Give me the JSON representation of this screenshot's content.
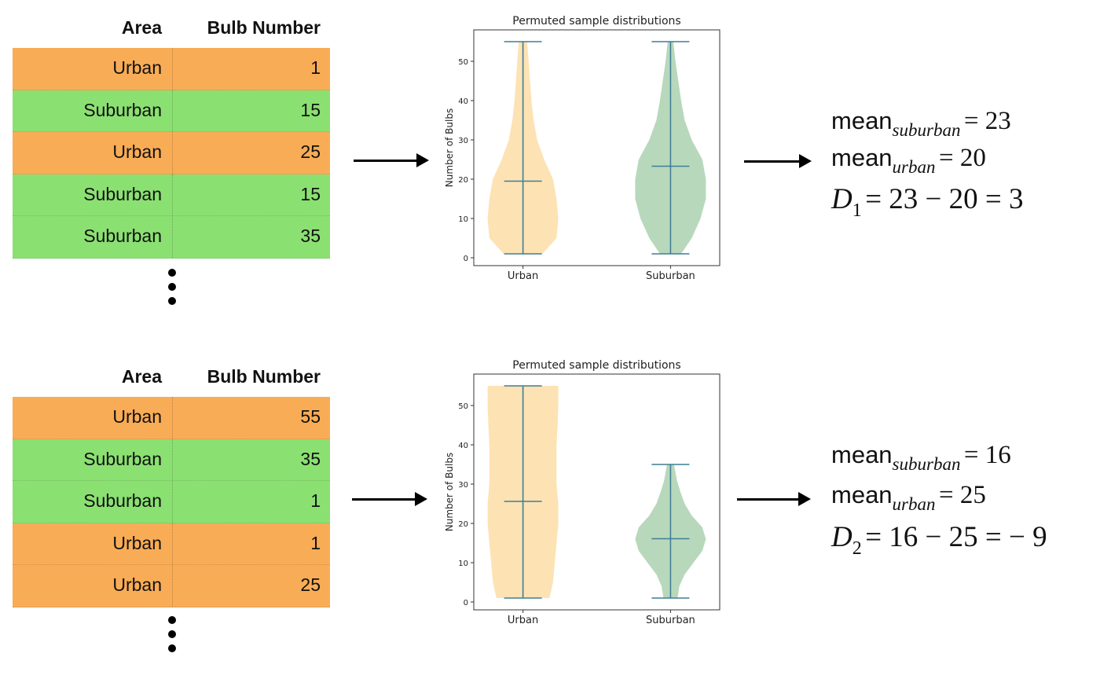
{
  "panels": [
    {
      "table": {
        "header": {
          "area": "Area",
          "bulb": "Bulb Number"
        },
        "rows": [
          {
            "area": "Urban",
            "bulb": "1"
          },
          {
            "area": "Suburban",
            "bulb": "15"
          },
          {
            "area": "Urban",
            "bulb": "25"
          },
          {
            "area": "Suburban",
            "bulb": "15"
          },
          {
            "area": "Suburban",
            "bulb": "35"
          }
        ]
      },
      "formulas": {
        "mean_word": "mean",
        "sub_suburban": "suburban",
        "sub_urban": "urban",
        "mean_suburban_rhs": "= 23",
        "mean_urban_rhs": "= 20",
        "d_symbol": "D",
        "d_index": "1",
        "d_rhs": "= 23 − 20 = 3"
      }
    },
    {
      "table": {
        "header": {
          "area": "Area",
          "bulb": "Bulb Number"
        },
        "rows": [
          {
            "area": "Urban",
            "bulb": "55"
          },
          {
            "area": "Suburban",
            "bulb": "35"
          },
          {
            "area": "Suburban",
            "bulb": "1"
          },
          {
            "area": "Urban",
            "bulb": "1"
          },
          {
            "area": "Urban",
            "bulb": "25"
          }
        ]
      },
      "formulas": {
        "mean_word": "mean",
        "sub_suburban": "suburban",
        "sub_urban": "urban",
        "mean_suburban_rhs": "= 16",
        "mean_urban_rhs": "= 25",
        "d_symbol": "D",
        "d_index": "2",
        "d_rhs": "= 16 − 25 = − 9"
      }
    }
  ],
  "colors": {
    "urban_row": "#f9ac56",
    "suburban_row": "#8be072",
    "urban_violin": "#fde0b0",
    "suburban_violin": "#b4d6b8",
    "violin_line": "#3f7f94"
  },
  "chart_data": [
    {
      "type": "violin",
      "title": "Permuted sample distributions",
      "ylabel": "Number of Bulbs",
      "categories": [
        "Urban",
        "Suburban"
      ],
      "ylim": [
        -2,
        58
      ],
      "yticks": [
        0,
        10,
        20,
        30,
        40,
        50
      ],
      "series": [
        {
          "name": "Urban",
          "min": 1,
          "max": 55,
          "mean": 19.5,
          "density": [
            [
              1,
              0.55
            ],
            [
              5,
              0.95
            ],
            [
              10,
              1.0
            ],
            [
              15,
              0.95
            ],
            [
              20,
              0.85
            ],
            [
              25,
              0.6
            ],
            [
              30,
              0.4
            ],
            [
              35,
              0.3
            ],
            [
              40,
              0.24
            ],
            [
              45,
              0.2
            ],
            [
              50,
              0.16
            ],
            [
              55,
              0.12
            ]
          ]
        },
        {
          "name": "Suburban",
          "min": 1,
          "max": 55,
          "mean": 23.3,
          "density": [
            [
              1,
              0.3
            ],
            [
              5,
              0.6
            ],
            [
              10,
              0.85
            ],
            [
              15,
              1.0
            ],
            [
              20,
              1.0
            ],
            [
              25,
              0.9
            ],
            [
              30,
              0.6
            ],
            [
              35,
              0.4
            ],
            [
              40,
              0.3
            ],
            [
              45,
              0.22
            ],
            [
              50,
              0.14
            ],
            [
              55,
              0.08
            ]
          ]
        }
      ]
    },
    {
      "type": "violin",
      "title": "Permuted sample distributions",
      "ylabel": "Number of Bulbs",
      "categories": [
        "Urban",
        "Suburban"
      ],
      "ylim": [
        -2,
        58
      ],
      "yticks": [
        0,
        10,
        20,
        30,
        40,
        50
      ],
      "series": [
        {
          "name": "Urban",
          "min": 1,
          "max": 55,
          "mean": 25.6,
          "density": [
            [
              1,
              0.75
            ],
            [
              5,
              0.85
            ],
            [
              10,
              0.9
            ],
            [
              15,
              0.95
            ],
            [
              20,
              1.0
            ],
            [
              25,
              1.0
            ],
            [
              30,
              0.95
            ],
            [
              35,
              0.95
            ],
            [
              40,
              0.95
            ],
            [
              45,
              0.98
            ],
            [
              50,
              1.0
            ],
            [
              55,
              1.0
            ]
          ]
        },
        {
          "name": "Suburban",
          "min": 1,
          "max": 35,
          "mean": 16.1,
          "density": [
            [
              1,
              0.2
            ],
            [
              4,
              0.25
            ],
            [
              7,
              0.4
            ],
            [
              10,
              0.65
            ],
            [
              13,
              0.9
            ],
            [
              16,
              1.0
            ],
            [
              19,
              0.9
            ],
            [
              22,
              0.6
            ],
            [
              25,
              0.4
            ],
            [
              28,
              0.28
            ],
            [
              31,
              0.18
            ],
            [
              35,
              0.1
            ]
          ]
        }
      ]
    }
  ]
}
